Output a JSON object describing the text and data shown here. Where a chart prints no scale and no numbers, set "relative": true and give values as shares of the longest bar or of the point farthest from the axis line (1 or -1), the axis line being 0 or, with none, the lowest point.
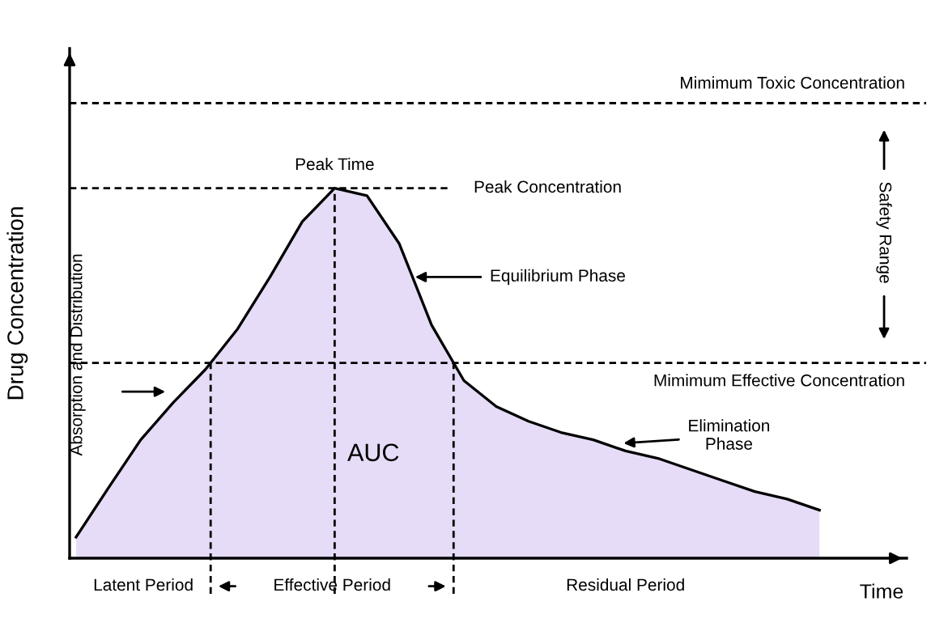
{
  "chart_data": {
    "type": "area",
    "relative": true,
    "xlabel": "Time",
    "ylabel": "Drug Concentration",
    "categories": [
      null,
      null,
      null,
      null,
      null,
      null,
      null,
      null,
      null,
      null,
      null,
      null,
      null,
      null,
      null,
      null,
      null,
      null,
      null,
      null,
      null,
      null,
      null,
      null
    ],
    "series": [
      {
        "color": "#e6dcf7",
        "values": [
          0.057,
          0.19,
          0.32,
          0.42,
          0.51,
          0.62,
          0.76,
          0.91,
          1.0,
          0.98,
          0.85,
          0.63,
          0.48,
          0.41,
          0.37,
          0.34,
          0.32,
          0.29,
          0.27,
          0.24,
          0.21,
          0.18,
          0.16,
          0.13
        ]
      }
    ],
    "ref_lines": [
      {
        "axis": "y",
        "value": 1.23,
        "label": "Mimimum Toxic Concentration",
        "line_style": "dashed",
        "color": "#000000"
      },
      {
        "axis": "y",
        "value": 1.0,
        "label": "Peak Concentration",
        "line_style": "dashed",
        "color": "#000000"
      },
      {
        "axis": "y",
        "value": 0.528,
        "label": "Mimimum Effective Concentration",
        "line_style": "dashed",
        "color": "#000000"
      }
    ],
    "annotations": [
      "Absorption and Distribution",
      "Equilibrium Phase",
      "Elimination\nPhase",
      "AUC",
      "Safety Range",
      "Latent Period",
      "Effective Period",
      "Residual Period",
      "Peak Time"
    ],
    "line_style": "solid",
    "marker": "none"
  }
}
